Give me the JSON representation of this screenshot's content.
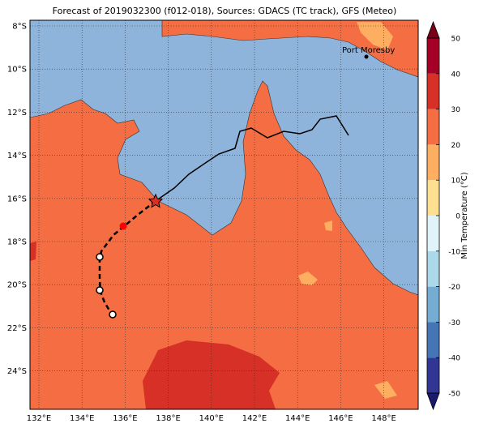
{
  "title": "Forecast of 2019032300 (f012-018), Sources: GDACS (TC track), GFS (Meteo)",
  "place_label": "Port Moresby",
  "longitude_labels": [
    "132°E",
    "134°E",
    "136°E",
    "138°E",
    "140°E",
    "142°E",
    "144°E",
    "146°E",
    "148°E"
  ],
  "latitude_labels": [
    "8°S",
    "10°S",
    "12°S",
    "14°S",
    "16°S",
    "18°S",
    "20°S",
    "22°S",
    "24°S"
  ],
  "colorbar": {
    "label": "Min Temperature (°C)",
    "ticks": [
      -50,
      -40,
      -30,
      -20,
      -10,
      0,
      10,
      20,
      30,
      40,
      50
    ],
    "colors": [
      "#313695",
      "#4575b4",
      "#74add1",
      "#abd9e9",
      "#e0f3f8",
      "#fee090",
      "#fdae61",
      "#f46d43",
      "#d73027",
      "#a50026"
    ],
    "under_color": "#1a1a6e",
    "over_color": "#7a0018"
  }
}
